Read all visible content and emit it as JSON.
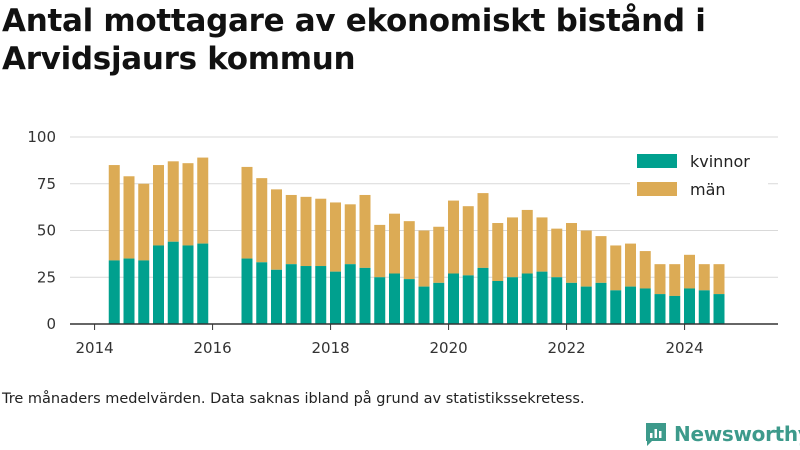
{
  "title": "Antal mottagare av ekonomiskt bistånd i Arvidsjaurs kommun",
  "footnote": "Tre månaders medelvärden. Data saknas ibland på grund av statistikssekretess.",
  "brand": "Newsworthy",
  "colors": {
    "kvinnor": "#00a08e",
    "man": "#dcab55",
    "grid": "#d9d9d9",
    "axis": "#333333",
    "brand": "#3d9a8b"
  },
  "chart_data": {
    "type": "bar",
    "stacked": true,
    "x_ticks": [
      "2014",
      "2016",
      "2018",
      "2020",
      "2022",
      "2024"
    ],
    "y_ticks": [
      "0",
      "25",
      "50",
      "75",
      "100"
    ],
    "ylim": [
      0,
      100
    ],
    "xlim": [
      "2013-08",
      "2025-08"
    ],
    "grid": true,
    "legend_position": "top-right",
    "series": [
      {
        "name": "kvinnor",
        "color": "#00a08e"
      },
      {
        "name": "män",
        "color": "#dcab55"
      }
    ],
    "points": [
      {
        "x": "2014-05",
        "kvinnor": 34,
        "total": 85
      },
      {
        "x": "2014-08",
        "kvinnor": 35,
        "total": 79
      },
      {
        "x": "2014-11",
        "kvinnor": 34,
        "total": 75
      },
      {
        "x": "2015-02",
        "kvinnor": 42,
        "total": 85
      },
      {
        "x": "2015-05",
        "kvinnor": 44,
        "total": 87
      },
      {
        "x": "2015-08",
        "kvinnor": 42,
        "total": 86
      },
      {
        "x": "2015-11",
        "kvinnor": 43,
        "total": 89
      },
      {
        "x": "2016-08",
        "kvinnor": 35,
        "total": 84
      },
      {
        "x": "2016-11",
        "kvinnor": 33,
        "total": 78
      },
      {
        "x": "2017-02",
        "kvinnor": 29,
        "total": 72
      },
      {
        "x": "2017-05",
        "kvinnor": 32,
        "total": 69
      },
      {
        "x": "2017-08",
        "kvinnor": 31,
        "total": 68
      },
      {
        "x": "2017-11",
        "kvinnor": 31,
        "total": 67
      },
      {
        "x": "2018-02",
        "kvinnor": 28,
        "total": 65
      },
      {
        "x": "2018-05",
        "kvinnor": 32,
        "total": 64
      },
      {
        "x": "2018-08",
        "kvinnor": 30,
        "total": 69
      },
      {
        "x": "2018-11",
        "kvinnor": 25,
        "total": 53
      },
      {
        "x": "2019-02",
        "kvinnor": 27,
        "total": 59
      },
      {
        "x": "2019-05",
        "kvinnor": 24,
        "total": 55
      },
      {
        "x": "2019-08",
        "kvinnor": 20,
        "total": 50
      },
      {
        "x": "2019-11",
        "kvinnor": 22,
        "total": 52
      },
      {
        "x": "2020-02",
        "kvinnor": 27,
        "total": 66
      },
      {
        "x": "2020-05",
        "kvinnor": 26,
        "total": 63
      },
      {
        "x": "2020-08",
        "kvinnor": 30,
        "total": 70
      },
      {
        "x": "2020-11",
        "kvinnor": 23,
        "total": 54
      },
      {
        "x": "2021-02",
        "kvinnor": 25,
        "total": 57
      },
      {
        "x": "2021-05",
        "kvinnor": 27,
        "total": 61
      },
      {
        "x": "2021-08",
        "kvinnor": 28,
        "total": 57
      },
      {
        "x": "2021-11",
        "kvinnor": 25,
        "total": 51
      },
      {
        "x": "2022-02",
        "kvinnor": 22,
        "total": 54
      },
      {
        "x": "2022-05",
        "kvinnor": 20,
        "total": 50
      },
      {
        "x": "2022-08",
        "kvinnor": 22,
        "total": 47
      },
      {
        "x": "2022-11",
        "kvinnor": 18,
        "total": 42
      },
      {
        "x": "2023-02",
        "kvinnor": 20,
        "total": 43
      },
      {
        "x": "2023-05",
        "kvinnor": 19,
        "total": 39
      },
      {
        "x": "2023-08",
        "kvinnor": 16,
        "total": 32
      },
      {
        "x": "2023-11",
        "kvinnor": 15,
        "total": 32
      },
      {
        "x": "2024-02",
        "kvinnor": 19,
        "total": 37
      },
      {
        "x": "2024-05",
        "kvinnor": 18,
        "total": 32
      },
      {
        "x": "2024-08",
        "kvinnor": 16,
        "total": 32
      }
    ]
  }
}
